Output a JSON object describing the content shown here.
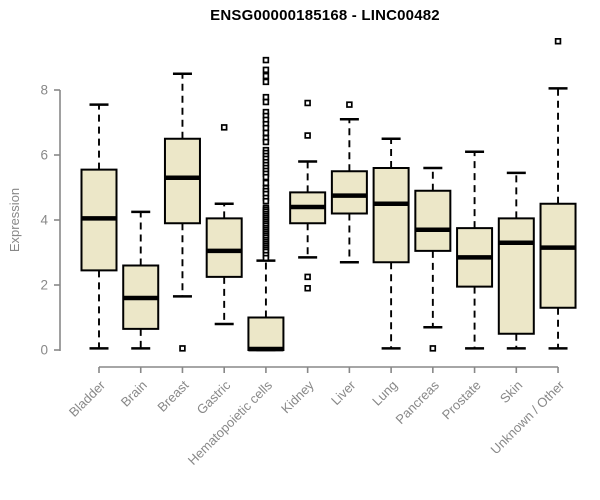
{
  "page": {
    "background": "#ffffff"
  },
  "chart_data": {
    "type": "box",
    "title": "ENSG00000185168 - LINC00482",
    "ylabel": "Expression",
    "xlabel": "",
    "ylim": [
      0,
      9.6
    ],
    "yticks": [
      0,
      2,
      4,
      6,
      8
    ],
    "grid": false,
    "legend": "none",
    "style": {
      "box_fill": "#ECE7C8",
      "box_stroke": "#000000",
      "median_color": "#000000",
      "whisker_style": "dashed",
      "outlier_marker": "open-square",
      "axis_color": "#888888",
      "tick_label_color": "#888888",
      "title_color": "#000000",
      "x_label_rotation": -45
    },
    "categories": [
      "Bladder",
      "Brain",
      "Breast",
      "Gastric",
      "Hematopoietic cells",
      "Kidney",
      "Liver",
      "Lung",
      "Pancreas",
      "Prostate",
      "Skin",
      "Unknown / Other"
    ],
    "series": [
      {
        "category": "Bladder",
        "whisker_low": 0.05,
        "q1": 2.45,
        "median": 4.05,
        "q3": 5.55,
        "whisker_high": 7.55,
        "outliers": []
      },
      {
        "category": "Brain",
        "whisker_low": 0.05,
        "q1": 0.65,
        "median": 1.6,
        "q3": 2.6,
        "whisker_high": 4.25,
        "outliers": []
      },
      {
        "category": "Breast",
        "whisker_low": 1.65,
        "q1": 3.9,
        "median": 5.3,
        "q3": 6.5,
        "whisker_high": 8.5,
        "outliers": [
          0.05
        ]
      },
      {
        "category": "Gastric",
        "whisker_low": 0.8,
        "q1": 2.25,
        "median": 3.05,
        "q3": 4.05,
        "whisker_high": 4.5,
        "outliers": [
          6.85
        ]
      },
      {
        "category": "Hematopoietic cells",
        "whisker_low": 0.0,
        "q1": 0.0,
        "median": 0.03,
        "q3": 1.0,
        "whisker_high": 2.75,
        "outliers": [
          8.92,
          8.62,
          8.43,
          8.25,
          7.78,
          7.63,
          7.32,
          7.2,
          7.08,
          6.95,
          6.83,
          6.68,
          6.52,
          6.4,
          6.15,
          6.06,
          5.97,
          5.88,
          5.78,
          5.69,
          5.6,
          5.51,
          5.42,
          5.32,
          5.14,
          4.98,
          4.89,
          4.8,
          4.68,
          4.58,
          4.37,
          4.31,
          4.25,
          4.18,
          4.12,
          4.06,
          4.0,
          3.94,
          3.88,
          3.82,
          3.75,
          3.69,
          3.63,
          3.57,
          3.51,
          3.45,
          3.38,
          3.32,
          3.26,
          3.2,
          3.14,
          3.08,
          3.02,
          2.92,
          2.83
        ]
      },
      {
        "category": "Kidney",
        "whisker_low": 2.85,
        "q1": 3.9,
        "median": 4.4,
        "q3": 4.85,
        "whisker_high": 5.8,
        "outliers": [
          7.6,
          6.6,
          2.25,
          1.9
        ]
      },
      {
        "category": "Liver",
        "whisker_low": 2.7,
        "q1": 4.2,
        "median": 4.75,
        "q3": 5.5,
        "whisker_high": 7.1,
        "outliers": [
          7.55
        ]
      },
      {
        "category": "Lung",
        "whisker_low": 0.05,
        "q1": 2.7,
        "median": 4.5,
        "q3": 5.6,
        "whisker_high": 6.5,
        "outliers": []
      },
      {
        "category": "Pancreas",
        "whisker_low": 0.7,
        "q1": 3.05,
        "median": 3.7,
        "q3": 4.9,
        "whisker_high": 5.6,
        "outliers": [
          0.05
        ]
      },
      {
        "category": "Prostate",
        "whisker_low": 0.05,
        "q1": 1.95,
        "median": 2.85,
        "q3": 3.75,
        "whisker_high": 6.1,
        "outliers": []
      },
      {
        "category": "Skin",
        "whisker_low": 0.05,
        "q1": 0.5,
        "median": 3.3,
        "q3": 4.05,
        "whisker_high": 5.45,
        "outliers": []
      },
      {
        "category": "Unknown / Other",
        "whisker_low": 0.05,
        "q1": 1.3,
        "median": 3.15,
        "q3": 4.5,
        "whisker_high": 8.05,
        "outliers": [
          9.5
        ]
      }
    ]
  }
}
